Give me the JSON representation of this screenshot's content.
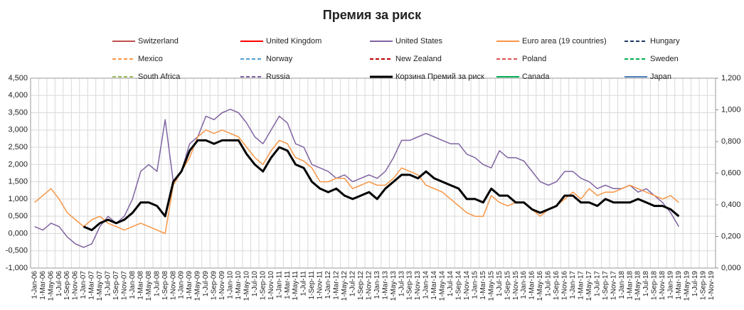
{
  "chart_data": {
    "type": "line",
    "title": "Премия за риск",
    "categories": [
      "1-Jan-06",
      "1-Mar-06",
      "1-May-06",
      "1-Jul-06",
      "1-Sep-06",
      "1-Nov-06",
      "1-Jan-07",
      "1-Mar-07",
      "1-May-07",
      "1-Jul-07",
      "1-Sep-07",
      "1-Nov-07",
      "1-Jan-08",
      "1-Mar-08",
      "1-May-08",
      "1-Jul-08",
      "1-Sep-08",
      "1-Nov-08",
      "1-Jan-09",
      "1-Mar-09",
      "1-May-09",
      "1-Jul-09",
      "1-Sep-09",
      "1-Nov-09",
      "1-Jan-10",
      "1-Mar-10",
      "1-May-10",
      "1-Jul-10",
      "1-Sep-10",
      "1-Nov-10",
      "1-Jan-11",
      "1-Mar-11",
      "1-May-11",
      "1-Jul-11",
      "1-Sep-11",
      "1-Nov-11",
      "1-Jan-12",
      "1-Mar-12",
      "1-May-12",
      "1-Jul-12",
      "1-Sep-12",
      "1-Nov-12",
      "1-Jan-13",
      "1-Mar-13",
      "1-May-13",
      "1-Jul-13",
      "1-Sep-13",
      "1-Nov-13",
      "1-Jan-14",
      "1-Mar-14",
      "1-May-14",
      "1-Jul-14",
      "1-Sep-14",
      "1-Nov-14",
      "1-Jan-15",
      "1-Mar-15",
      "1-May-15",
      "1-Jul-15",
      "1-Sep-15",
      "1-Nov-15",
      "1-Jan-16",
      "1-Mar-16",
      "1-May-16",
      "1-Jul-16",
      "1-Sep-16",
      "1-Nov-16",
      "1-Jan-17",
      "1-Mar-17",
      "1-May-17",
      "1-Jul-17",
      "1-Sep-17",
      "1-Nov-17",
      "1-Jan-18",
      "1-Mar-18",
      "1-May-18",
      "1-Jul-18",
      "1-Sep-18",
      "1-Nov-18",
      "1-Jan-19",
      "1-Mar-19",
      "1-May-19",
      "1-Jul-19",
      "1-Sep-19",
      "1-Nov-19"
    ],
    "series": [
      {
        "name": "Switzerland",
        "color": "#c0504d"
      },
      {
        "name": "United Kingdom",
        "color": "#ff0000"
      },
      {
        "name": "United States",
        "color": "#8064a2",
        "values": [
          0.2,
          0.1,
          0.3,
          0.2,
          -0.1,
          -0.3,
          -0.4,
          -0.3,
          0.2,
          0.5,
          0.3,
          0.5,
          1.0,
          1.8,
          2.0,
          1.8,
          3.3,
          1.5,
          1.8,
          2.6,
          2.8,
          3.4,
          3.3,
          3.5,
          3.6,
          3.5,
          3.2,
          2.8,
          2.6,
          3.0,
          3.4,
          3.2,
          2.6,
          2.5,
          2.0,
          1.9,
          1.8,
          1.6,
          1.7,
          1.5,
          1.6,
          1.7,
          1.6,
          1.8,
          2.2,
          2.7,
          2.7,
          2.8,
          2.9,
          2.8,
          2.7,
          2.6,
          2.6,
          2.3,
          2.2,
          2.0,
          1.9,
          2.4,
          2.2,
          2.2,
          2.1,
          1.8,
          1.5,
          1.4,
          1.5,
          1.8,
          1.8,
          1.6,
          1.5,
          1.3,
          1.4,
          1.3,
          1.3,
          1.4,
          1.2,
          1.3,
          1.1,
          0.9,
          0.6,
          0.2,
          null,
          null,
          null,
          null
        ]
      },
      {
        "name": "Euro area (19 countries)",
        "color": "#f79646",
        "values": [
          0.9,
          1.1,
          1.3,
          1.0,
          0.6,
          0.4,
          0.2,
          0.4,
          0.5,
          0.3,
          0.2,
          0.1,
          0.2,
          0.3,
          0.2,
          0.1,
          0.0,
          1.4,
          1.8,
          2.2,
          2.8,
          3.0,
          2.9,
          3.0,
          2.9,
          2.8,
          2.5,
          2.2,
          2.0,
          2.4,
          2.7,
          2.6,
          2.2,
          2.1,
          1.9,
          1.5,
          1.5,
          1.6,
          1.6,
          1.3,
          1.4,
          1.5,
          1.4,
          1.4,
          1.6,
          1.9,
          1.8,
          1.7,
          1.4,
          1.3,
          1.2,
          1.0,
          0.8,
          0.6,
          0.5,
          0.5,
          1.1,
          0.9,
          0.8,
          0.9,
          0.9,
          0.7,
          0.5,
          0.7,
          0.8,
          1.0,
          1.2,
          1.0,
          1.3,
          1.1,
          1.2,
          1.2,
          1.3,
          1.4,
          1.3,
          1.2,
          1.1,
          1.0,
          1.1,
          0.9,
          null,
          null,
          null,
          null
        ]
      },
      {
        "name": "Hungary",
        "color": "#1f3864",
        "dash": true
      },
      {
        "name": "Mexico",
        "color": "#f79646",
        "dash": true
      },
      {
        "name": "Norway",
        "color": "#4f9fd6",
        "dash": true
      },
      {
        "name": "New Zealand",
        "color": "#c00000",
        "dash": true
      },
      {
        "name": "Poland",
        "color": "#d9534f",
        "dash": true
      },
      {
        "name": "Sweden",
        "color": "#00b050",
        "dash": true
      },
      {
        "name": "South Africa",
        "color": "#9bbb59",
        "dash": true
      },
      {
        "name": "Russia",
        "color": "#8064a2",
        "dash": true
      },
      {
        "name": "Корзина Премий за риск",
        "color": "#000000",
        "width": 3,
        "values": [
          null,
          null,
          null,
          null,
          null,
          null,
          0.2,
          0.1,
          0.3,
          0.4,
          0.3,
          0.4,
          0.6,
          0.9,
          0.9,
          0.8,
          0.5,
          1.5,
          1.8,
          2.4,
          2.7,
          2.7,
          2.6,
          2.7,
          2.7,
          2.7,
          2.3,
          2.0,
          1.8,
          2.2,
          2.5,
          2.4,
          2.0,
          1.9,
          1.5,
          1.3,
          1.2,
          1.3,
          1.1,
          1.0,
          1.1,
          1.2,
          1.0,
          1.3,
          1.5,
          1.7,
          1.7,
          1.6,
          1.8,
          1.6,
          1.5,
          1.4,
          1.3,
          1.0,
          1.0,
          0.9,
          1.3,
          1.1,
          1.1,
          0.9,
          0.9,
          0.7,
          0.6,
          0.7,
          0.8,
          1.1,
          1.1,
          0.9,
          0.9,
          0.8,
          1.0,
          0.9,
          0.9,
          0.9,
          1.0,
          0.9,
          0.8,
          0.8,
          0.7,
          0.5,
          null,
          null,
          null,
          null
        ]
      },
      {
        "name": "Canada",
        "color": "#00b050"
      },
      {
        "name": "Japan",
        "color": "#4f81bd"
      }
    ],
    "ylim": [
      -1,
      4.5
    ],
    "yticks": [
      {
        "value": -1,
        "label": "-1,000"
      },
      {
        "value": -0.5,
        "label": "-0,500"
      },
      {
        "value": 0,
        "label": "0,000"
      },
      {
        "value": 0.5,
        "label": "0,500"
      },
      {
        "value": 1,
        "label": "1,000"
      },
      {
        "value": 1.5,
        "label": "1,500"
      },
      {
        "value": 2,
        "label": "2,000"
      },
      {
        "value": 2.5,
        "label": "2,500"
      },
      {
        "value": 3,
        "label": "3,000"
      },
      {
        "value": 3.5,
        "label": "3,500"
      },
      {
        "value": 4,
        "label": "4,000"
      },
      {
        "value": 4.5,
        "label": "4,500"
      }
    ],
    "y2lim": [
      0,
      1.2
    ],
    "y2ticks": [
      {
        "value": 0,
        "label": "0,000"
      },
      {
        "value": 0.2,
        "label": "0,200"
      },
      {
        "value": 0.4,
        "label": "0,400"
      },
      {
        "value": 0.6,
        "label": "0,600"
      },
      {
        "value": 0.8,
        "label": "0,800"
      },
      {
        "value": 1,
        "label": "1,000"
      },
      {
        "value": 1.2,
        "label": "1,200"
      }
    ],
    "grid": true
  }
}
